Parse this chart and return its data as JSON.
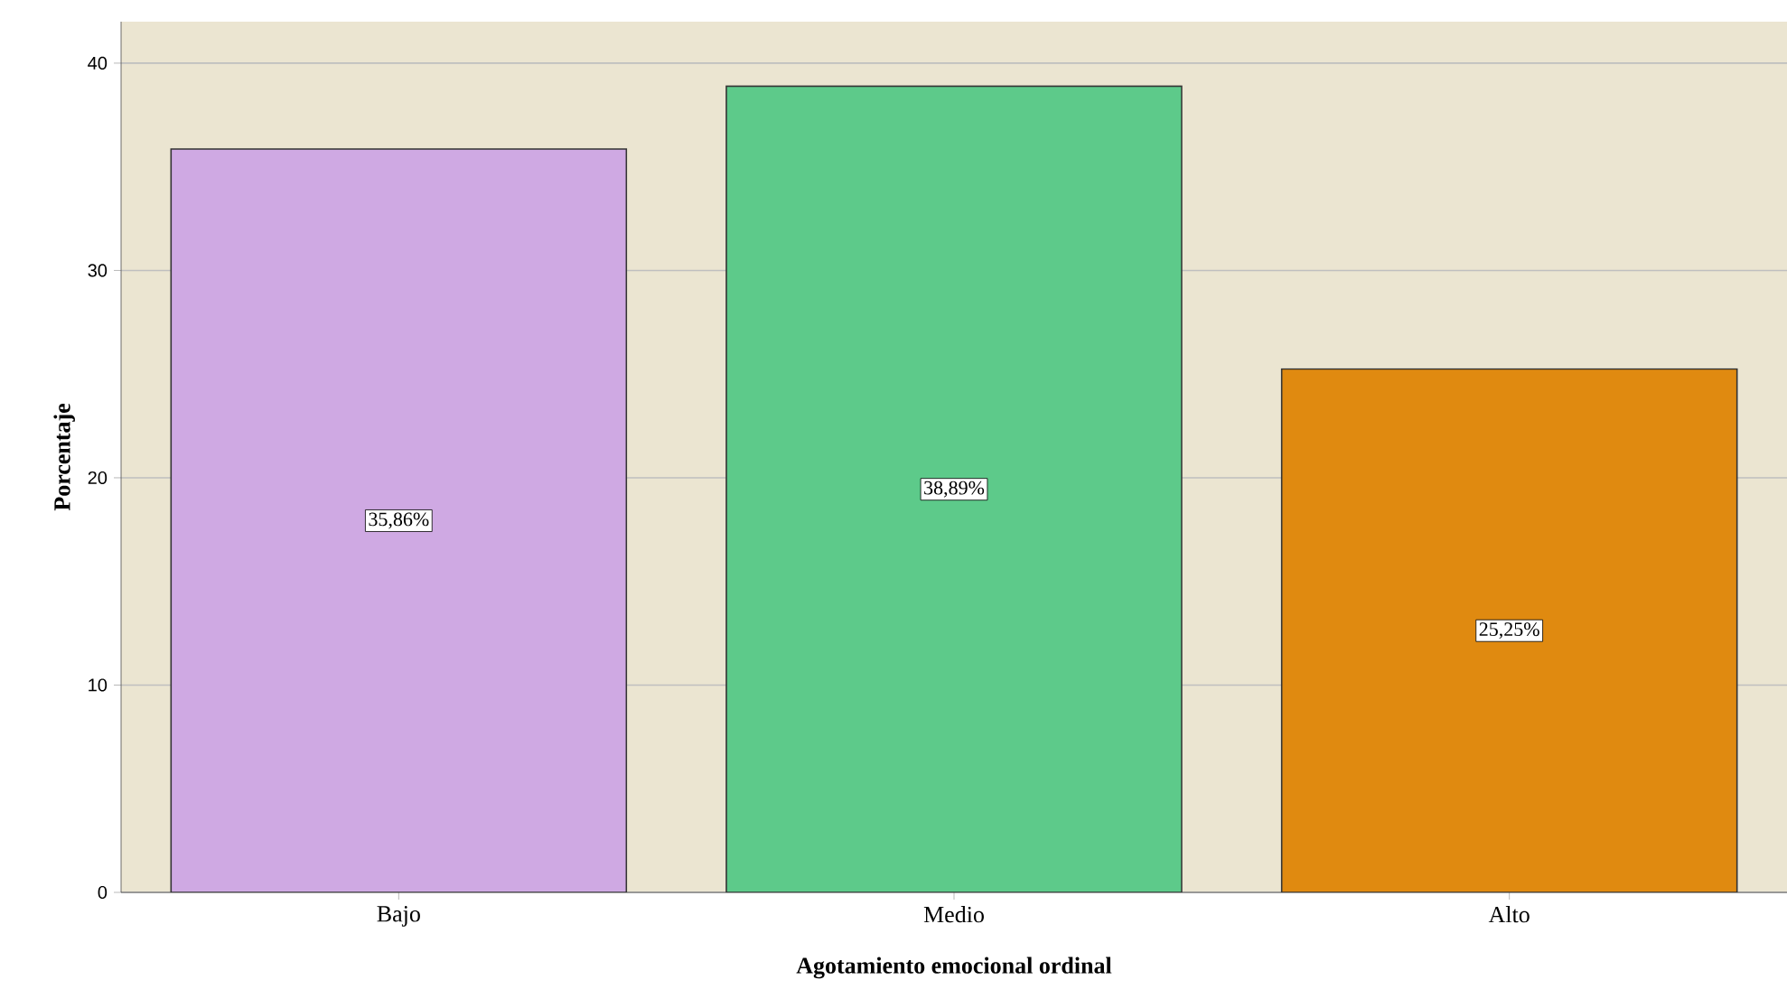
{
  "chart_data": {
    "type": "bar",
    "xlabel": "Agotamiento emocional ordinal",
    "ylabel": "Porcentaje",
    "categories": [
      "Bajo",
      "Medio",
      "Alto"
    ],
    "values": [
      35.86,
      38.89,
      25.25
    ],
    "colors": [
      "#cfa9e3",
      "#5dca8a",
      "#e08a10"
    ],
    "value_labels": [
      "35,86%",
      "38,89%",
      "25,25%"
    ],
    "ylim": [
      0,
      42
    ],
    "yticks": [
      0,
      10,
      20,
      30,
      40
    ],
    "grid": "y"
  }
}
